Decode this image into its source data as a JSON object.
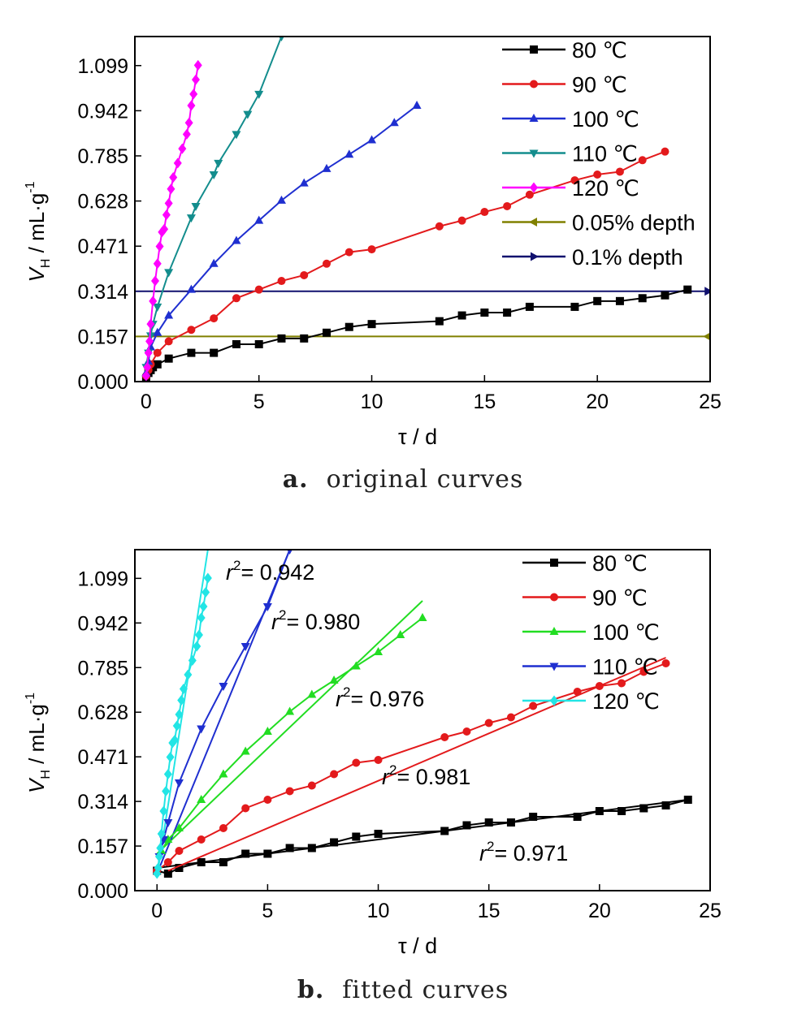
{
  "chart_data": [
    {
      "type": "line",
      "panel_label": "a.",
      "caption": "original curves",
      "xlabel": "τ / d",
      "ylabel_main": "V",
      "ylabel_sub": "H",
      "ylabel_rest": " / mL·g",
      "ylabel_sup": "-1",
      "xlim": [
        -0.5,
        25
      ],
      "ylim": [
        0,
        1.2
      ],
      "xticks": [
        "0",
        "5",
        "10",
        "15",
        "20",
        "25"
      ],
      "yticks": [
        "0.000",
        "0.157",
        "0.314",
        "0.471",
        "0.628",
        "0.785",
        "0.942",
        "1.099"
      ],
      "legend_position": "top-right",
      "series": [
        {
          "name": "80 ℃",
          "color": "#000000",
          "marker": "square",
          "x": [
            0,
            0.1,
            0.2,
            0.3,
            0.5,
            1,
            2,
            3,
            4,
            5,
            6,
            7,
            8,
            9,
            10,
            13,
            14,
            15,
            16,
            17,
            19,
            20,
            21,
            22,
            23,
            24
          ],
          "y": [
            0.01,
            0.03,
            0.04,
            0.05,
            0.06,
            0.08,
            0.1,
            0.1,
            0.13,
            0.13,
            0.15,
            0.15,
            0.17,
            0.19,
            0.2,
            0.21,
            0.23,
            0.24,
            0.24,
            0.26,
            0.26,
            0.28,
            0.28,
            0.29,
            0.3,
            0.32
          ]
        },
        {
          "name": "90 ℃",
          "color": "#e31a1c",
          "marker": "circle",
          "x": [
            0,
            0.1,
            0.2,
            0.5,
            1,
            2,
            3,
            4,
            5,
            6,
            7,
            8,
            9,
            10,
            13,
            14,
            15,
            16,
            17,
            19,
            20,
            21,
            22,
            23
          ],
          "y": [
            0.02,
            0.04,
            0.06,
            0.1,
            0.14,
            0.18,
            0.22,
            0.29,
            0.32,
            0.35,
            0.37,
            0.41,
            0.45,
            0.46,
            0.54,
            0.56,
            0.59,
            0.61,
            0.65,
            0.7,
            0.72,
            0.73,
            0.77,
            0.8
          ]
        },
        {
          "name": "100 ℃",
          "color": "#1f2fd0",
          "marker": "triangle-up",
          "x": [
            0,
            0.1,
            0.2,
            0.5,
            1,
            2,
            3,
            4,
            5,
            6,
            7,
            8,
            9,
            10,
            11,
            12
          ],
          "y": [
            0.03,
            0.07,
            0.12,
            0.17,
            0.23,
            0.32,
            0.41,
            0.49,
            0.56,
            0.63,
            0.69,
            0.74,
            0.79,
            0.84,
            0.9,
            0.96
          ]
        },
        {
          "name": "110 ℃",
          "color": "#138d8d",
          "marker": "triangle-down",
          "x": [
            0,
            0.1,
            0.2,
            0.3,
            0.5,
            1,
            2,
            2.2,
            3,
            3.2,
            4,
            4.5,
            5,
            6
          ],
          "y": [
            0.05,
            0.1,
            0.16,
            0.2,
            0.26,
            0.38,
            0.57,
            0.61,
            0.72,
            0.76,
            0.86,
            0.93,
            1.0,
            1.2
          ]
        },
        {
          "name": "120 ℃",
          "color": "#ff00ff",
          "marker": "diamond",
          "x": [
            0,
            0.05,
            0.1,
            0.15,
            0.2,
            0.3,
            0.4,
            0.5,
            0.6,
            0.7,
            0.8,
            0.9,
            1.0,
            1.1,
            1.2,
            1.4,
            1.6,
            1.8,
            1.9,
            2.0,
            2.1,
            2.2,
            2.3
          ],
          "y": [
            0.02,
            0.05,
            0.1,
            0.14,
            0.2,
            0.28,
            0.35,
            0.41,
            0.47,
            0.52,
            0.53,
            0.58,
            0.62,
            0.67,
            0.71,
            0.76,
            0.81,
            0.86,
            0.9,
            0.96,
            1.0,
            1.05,
            1.1
          ]
        },
        {
          "name": "0.05% depth",
          "color": "#808000",
          "marker": "triangle-left",
          "x": [
            -0.5,
            25
          ],
          "y": [
            0.157,
            0.157
          ]
        },
        {
          "name": "0.1% depth",
          "color": "#10106e",
          "marker": "triangle-right",
          "x": [
            -0.5,
            25
          ],
          "y": [
            0.314,
            0.314
          ]
        }
      ]
    },
    {
      "type": "line",
      "panel_label": "b.",
      "caption": "fitted curves",
      "xlabel": "τ / d",
      "ylabel_main": "V",
      "ylabel_sub": "H",
      "ylabel_rest": " / mL·g",
      "ylabel_sup": "-1",
      "xlim": [
        -1,
        25
      ],
      "ylim": [
        0,
        1.2
      ],
      "xticks": [
        "0",
        "5",
        "10",
        "15",
        "20",
        "25"
      ],
      "yticks": [
        "0.000",
        "0.157",
        "0.314",
        "0.471",
        "0.628",
        "0.785",
        "0.942",
        "1.099"
      ],
      "legend_position": "top-right",
      "series": [
        {
          "name": "80 ℃",
          "color": "#000000",
          "marker": "square",
          "x": [
            0,
            0.5,
            1,
            2,
            3,
            4,
            5,
            6,
            7,
            8,
            9,
            10,
            13,
            14,
            15,
            16,
            17,
            19,
            20,
            21,
            22,
            23,
            24
          ],
          "y": [
            0.07,
            0.06,
            0.08,
            0.1,
            0.1,
            0.13,
            0.13,
            0.15,
            0.15,
            0.17,
            0.19,
            0.2,
            0.21,
            0.23,
            0.24,
            0.24,
            0.26,
            0.26,
            0.28,
            0.28,
            0.29,
            0.3,
            0.32
          ],
          "fit": {
            "x": [
              0,
              24
            ],
            "y": [
              0.08,
              0.32
            ]
          },
          "r2_label": "0.971"
        },
        {
          "name": "90 ℃",
          "color": "#e31a1c",
          "marker": "circle",
          "x": [
            0,
            0.5,
            1,
            2,
            3,
            4,
            5,
            6,
            7,
            8,
            9,
            10,
            13,
            14,
            15,
            16,
            17,
            19,
            20,
            21,
            22,
            23
          ],
          "y": [
            0.07,
            0.1,
            0.14,
            0.18,
            0.22,
            0.29,
            0.32,
            0.35,
            0.37,
            0.41,
            0.45,
            0.46,
            0.54,
            0.56,
            0.59,
            0.61,
            0.65,
            0.7,
            0.72,
            0.73,
            0.77,
            0.8
          ],
          "fit": {
            "x": [
              0.5,
              23
            ],
            "y": [
              0.07,
              0.82
            ]
          },
          "r2_label": "0.981"
        },
        {
          "name": "100 ℃",
          "color": "#22dd22",
          "marker": "triangle-up",
          "x": [
            0.2,
            0.5,
            1,
            2,
            3,
            4,
            5,
            6,
            7,
            8,
            9,
            10,
            11,
            12
          ],
          "y": [
            0.14,
            0.18,
            0.22,
            0.32,
            0.41,
            0.49,
            0.56,
            0.63,
            0.69,
            0.74,
            0.79,
            0.84,
            0.9,
            0.96
          ]
        },
        {
          "name": "110 ℃",
          "color": "#1f2fd0",
          "marker": "triangle-down",
          "x": [
            0.1,
            0.3,
            0.5,
            1,
            2,
            3,
            4,
            5,
            6
          ],
          "y": [
            0.12,
            0.18,
            0.24,
            0.38,
            0.57,
            0.72,
            0.86,
            1.0,
            1.2
          ]
        },
        {
          "name": "120 ℃",
          "color": "#22e5e5",
          "marker": "diamond",
          "x": [
            0,
            0.05,
            0.1,
            0.15,
            0.2,
            0.3,
            0.4,
            0.5,
            0.6,
            0.7,
            0.8,
            0.9,
            1.0,
            1.1,
            1.2,
            1.4,
            1.6,
            1.8,
            1.9,
            2.0,
            2.1,
            2.2,
            2.3
          ],
          "y": [
            0.06,
            0.08,
            0.12,
            0.15,
            0.2,
            0.28,
            0.35,
            0.41,
            0.47,
            0.52,
            0.53,
            0.58,
            0.62,
            0.67,
            0.71,
            0.76,
            0.81,
            0.86,
            0.9,
            0.96,
            1.0,
            1.05,
            1.1
          ]
        }
      ],
      "extra_fits": [
        {
          "color": "#22dd22",
          "x": [
            0,
            12
          ],
          "y": [
            0.13,
            1.02
          ],
          "r2_label": "0.976"
        },
        {
          "color": "#1f2fd0",
          "x": [
            0,
            6
          ],
          "y": [
            0.06,
            1.2
          ],
          "r2_label": "0.980"
        },
        {
          "color": "#22e5e5",
          "x": [
            0,
            2.3
          ],
          "y": [
            0.05,
            1.2
          ],
          "r2_label": "0.942"
        }
      ]
    }
  ]
}
